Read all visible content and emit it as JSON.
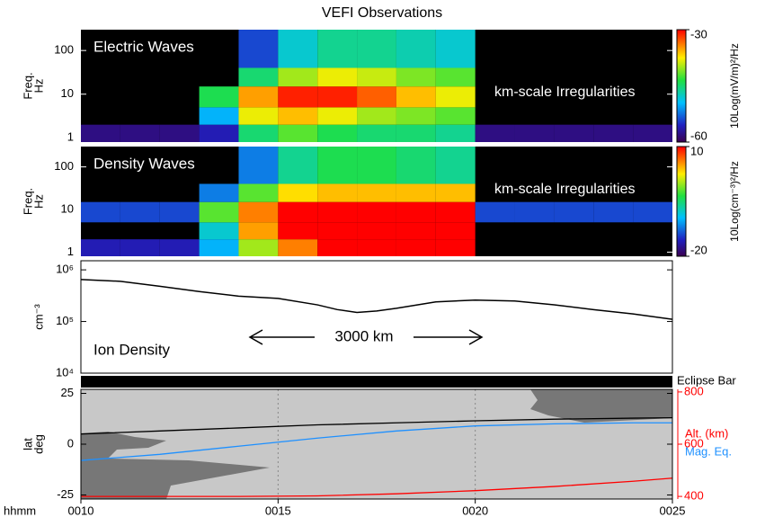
{
  "title": "VEFI Observations",
  "chart_data": [
    {
      "type": "heatmap",
      "label": "Electric Waves",
      "annotation": "km-scale Irregularities",
      "ylabel": [
        "Freq.",
        "Hz"
      ],
      "log_y": true,
      "xlim": [
        10,
        25
      ],
      "ylim": [
        0.8,
        300
      ],
      "yticks": [
        1,
        10,
        100
      ],
      "x_edges": [
        10,
        11,
        12,
        13,
        14,
        15,
        16,
        17,
        18,
        19,
        20,
        21,
        22,
        23,
        24,
        25
      ],
      "y_edges": [
        0.8,
        2,
        5,
        15,
        40,
        300
      ],
      "z": [
        [
          -58,
          -58,
          -58,
          -56,
          -45,
          -42,
          -44,
          -45,
          -45,
          -46,
          -58,
          -58,
          -58,
          -58,
          -58
        ],
        [
          null,
          null,
          null,
          -50,
          -38,
          -36,
          -38,
          -40,
          -41,
          -42,
          null,
          null,
          null,
          null,
          null
        ],
        [
          null,
          null,
          null,
          -44,
          -35,
          -31,
          -31,
          -33,
          -36,
          -38,
          null,
          null,
          null,
          null,
          null
        ],
        [
          null,
          null,
          null,
          null,
          -45,
          -40,
          -38,
          -39,
          -41,
          -42,
          null,
          null,
          null,
          null,
          null
        ],
        [
          null,
          null,
          null,
          null,
          -54,
          -48,
          -46,
          -46,
          -47,
          -48,
          null,
          null,
          null,
          null,
          null
        ]
      ],
      "clim": [
        -60,
        -30
      ],
      "cticks": [
        -60,
        -30
      ],
      "colorbar_label": "10Log(mV/m)²/Hz"
    },
    {
      "type": "heatmap",
      "label": "Density Waves",
      "annotation": "km-scale Irregularities",
      "ylabel": [
        "Freq.",
        "Hz"
      ],
      "log_y": true,
      "xlim": [
        10,
        25
      ],
      "ylim": [
        0.8,
        300
      ],
      "yticks": [
        1,
        10,
        100
      ],
      "x_edges": [
        10,
        11,
        12,
        13,
        14,
        15,
        16,
        17,
        18,
        19,
        20,
        21,
        22,
        23,
        24,
        25
      ],
      "y_edges": [
        0.8,
        2,
        5,
        15,
        40,
        300
      ],
      "z": [
        [
          -16,
          -16,
          -16,
          -10,
          0,
          6,
          10,
          10,
          10,
          10,
          null,
          null,
          null,
          null,
          null
        ],
        [
          null,
          null,
          null,
          -8,
          5,
          10,
          10,
          10,
          10,
          10,
          null,
          null,
          null,
          null,
          null
        ],
        [
          -14,
          -14,
          -14,
          -2,
          6,
          10,
          10,
          10,
          10,
          10,
          -14,
          -14,
          -14,
          -14,
          -14
        ],
        [
          null,
          null,
          null,
          -12,
          -2,
          3,
          4,
          4,
          4,
          4,
          null,
          null,
          null,
          null,
          null
        ],
        [
          null,
          null,
          null,
          null,
          -12,
          -6,
          -4,
          -4,
          -5,
          -6,
          null,
          null,
          null,
          null,
          null
        ]
      ],
      "clim": [
        -20,
        10
      ],
      "cticks": [
        -20,
        10
      ],
      "colorbar_label": "10Log(cm⁻³)²/Hz"
    },
    {
      "type": "line",
      "label": "Ion Density",
      "annotation": "3000 km",
      "ylabel": [
        "cm⁻³"
      ],
      "log_y": true,
      "xlim": [
        10,
        25
      ],
      "ylim": [
        10000,
        1500000
      ],
      "yticks": [
        {
          "value": 10000,
          "label": "10⁴"
        },
        {
          "value": 100000,
          "label": "10⁵"
        },
        {
          "value": 1000000,
          "label": "10⁶"
        }
      ],
      "color": "#000000",
      "x": [
        10,
        11,
        12,
        13,
        14,
        15,
        16,
        16.5,
        17,
        17.5,
        18,
        19,
        20,
        21,
        22,
        23,
        24,
        25
      ],
      "values": [
        650000,
        600000,
        480000,
        380000,
        310000,
        280000,
        210000,
        170000,
        150000,
        160000,
        180000,
        240000,
        260000,
        250000,
        210000,
        170000,
        140000,
        110000
      ]
    },
    {
      "type": "map",
      "eclipse_label": "Eclipse Bar",
      "ylabel": [
        "lat",
        "deg"
      ],
      "xlabel": "hhmm",
      "xlim": [
        10,
        25
      ],
      "ylim": [
        -27,
        27
      ],
      "yticks": [
        -25,
        0,
        25
      ],
      "y2lim": [
        390,
        810
      ],
      "y2ticks": [
        400,
        600,
        800
      ],
      "grid": true,
      "xticks": [
        {
          "value": 10,
          "label": "0010"
        },
        {
          "value": 15,
          "label": "0015"
        },
        {
          "value": 20,
          "label": "0020"
        },
        {
          "value": 25,
          "label": "0025"
        }
      ],
      "x": [
        10,
        12,
        14,
        16,
        18,
        20,
        22,
        24,
        25
      ],
      "series": [
        {
          "color": "#000000",
          "values": [
            5,
            6.5,
            8,
            9.5,
            10.5,
            11.5,
            12.3,
            12.8,
            13
          ]
        },
        {
          "name": "Mag. Eq.",
          "color": "#1e90ff",
          "values": [
            -8,
            -5,
            -1,
            3,
            6.5,
            9,
            10,
            10.5,
            10.5
          ]
        },
        {
          "name": "Alt. (km)",
          "color": "#ff0000",
          "axis": "y2",
          "values": [
            400,
            400,
            400,
            402,
            410,
            422,
            438,
            458,
            470
          ]
        }
      ]
    }
  ]
}
